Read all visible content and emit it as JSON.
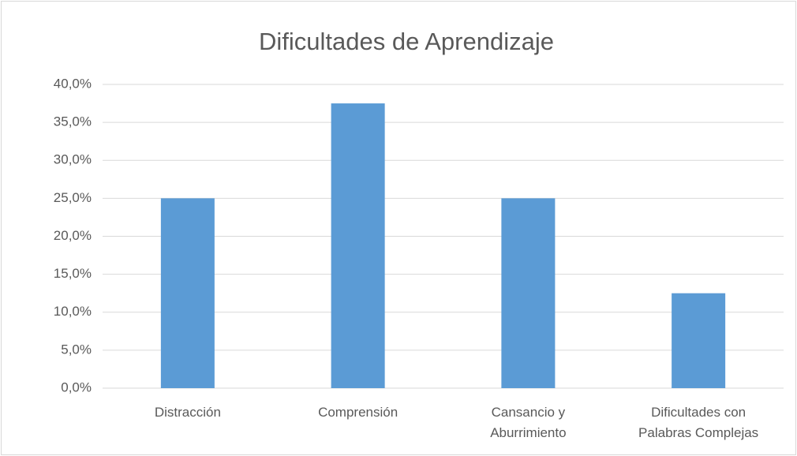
{
  "chart_data": {
    "type": "bar",
    "title": "Dificultades de Aprendizaje",
    "categories": [
      "Distracción",
      "Comprensión",
      "Cansancio y Aburrimiento",
      "Dificultades con Palabras Complejas"
    ],
    "values": [
      25,
      37.5,
      25,
      12.5
    ],
    "color": "#5b9bd5",
    "ylim": [
      0,
      40
    ],
    "yticks": [
      {
        "value": 0,
        "label": "0,0%"
      },
      {
        "value": 5,
        "label": "5,0%"
      },
      {
        "value": 10,
        "label": "10,0%"
      },
      {
        "value": 15,
        "label": "15,0%"
      },
      {
        "value": 20,
        "label": "20,0%"
      },
      {
        "value": 25,
        "label": "25,0%"
      },
      {
        "value": 30,
        "label": "30,0%"
      },
      {
        "value": 35,
        "label": "35,0%"
      },
      {
        "value": 40,
        "label": "40,0%"
      }
    ],
    "grid": true
  }
}
